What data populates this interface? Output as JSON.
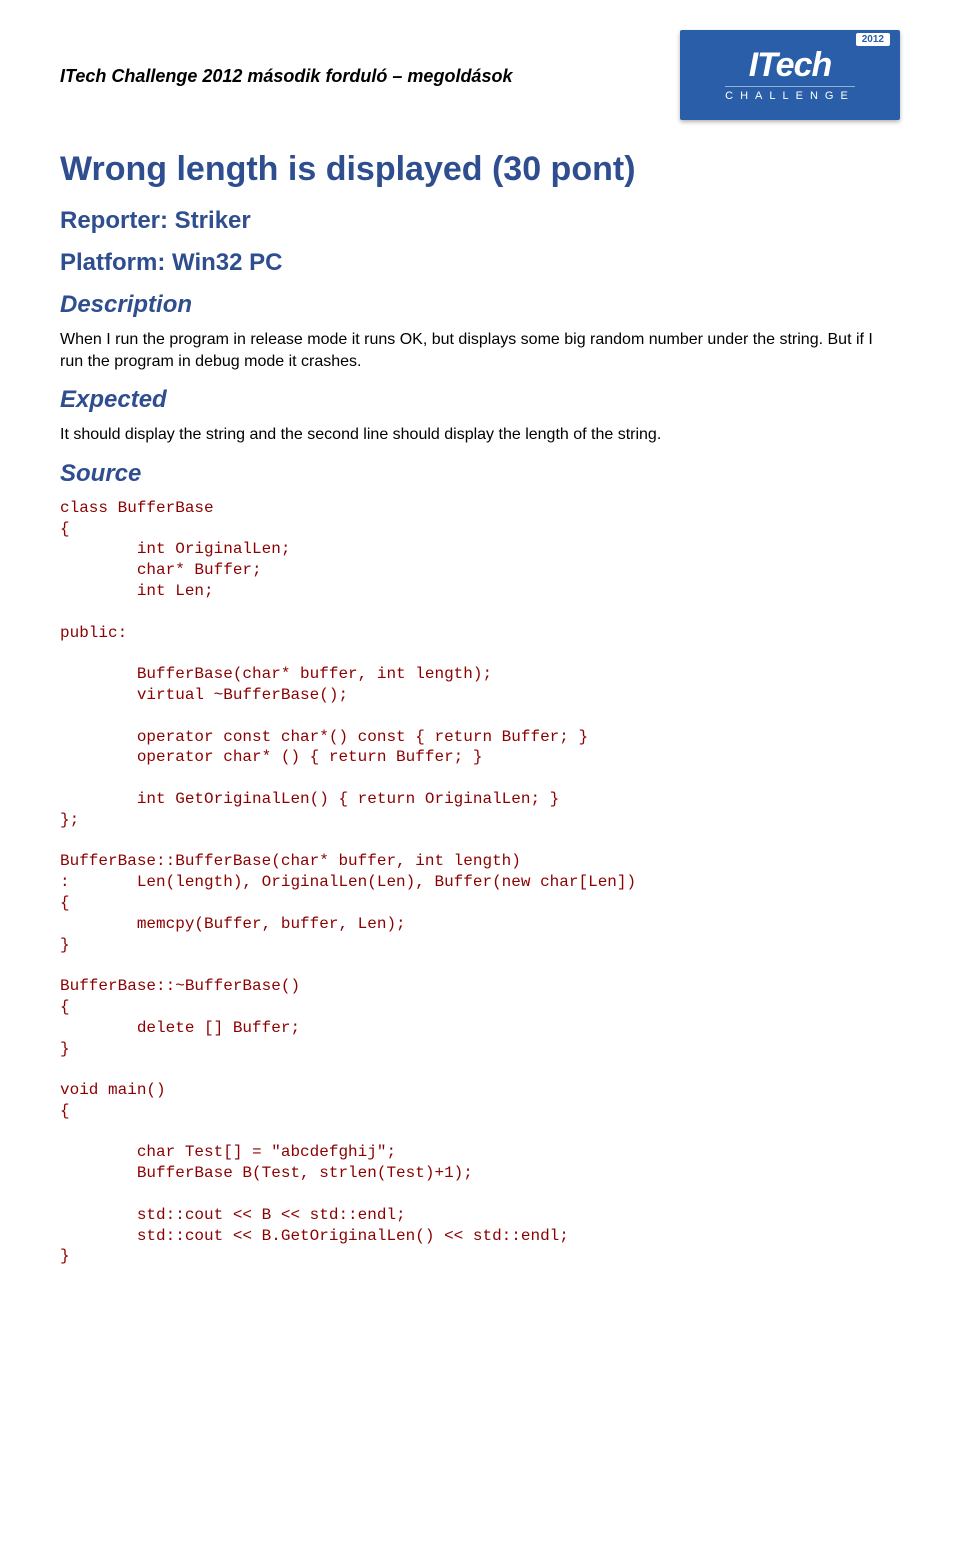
{
  "header": {
    "running": "ITech Challenge 2012 második forduló – megoldások",
    "logo": {
      "year": "2012",
      "main": "ITech",
      "sub": "CHALLENGE",
      "bg_color": "#2a5ea8",
      "text_color": "#ffffff"
    }
  },
  "title": "Wrong length is displayed (30 pont)",
  "reporter": {
    "label": "Reporter: Striker"
  },
  "platform": {
    "label": "Platform: Win32 PC"
  },
  "description": {
    "heading": "Description",
    "text": "When I run the program in release mode it runs OK, but displays some big random number under the string. But if I run the program in debug mode it crashes."
  },
  "expected": {
    "heading": "Expected",
    "text": "It should display the string and the second line should display the length of the string."
  },
  "source": {
    "heading": "Source",
    "code": "class BufferBase\n{\n        int OriginalLen;\n        char* Buffer;\n        int Len;\n\npublic:\n\n        BufferBase(char* buffer, int length);\n        virtual ~BufferBase();\n\n        operator const char*() const { return Buffer; }\n        operator char* () { return Buffer; }\n\n        int GetOriginalLen() { return OriginalLen; }\n};\n\nBufferBase::BufferBase(char* buffer, int length)\n:       Len(length), OriginalLen(Len), Buffer(new char[Len])\n{\n        memcpy(Buffer, buffer, Len);\n}\n\nBufferBase::~BufferBase()\n{\n        delete [] Buffer;\n}\n\nvoid main()\n{\n\n        char Test[] = \"abcdefghij\";\n        BufferBase B(Test, strlen(Test)+1);\n\n        std::cout << B << std::endl;\n        std::cout << B.GetOriginalLen() << std::endl;\n}"
  },
  "colors": {
    "heading_color": "#2e4e8f",
    "code_color": "#8b0000",
    "background": "#ffffff"
  }
}
